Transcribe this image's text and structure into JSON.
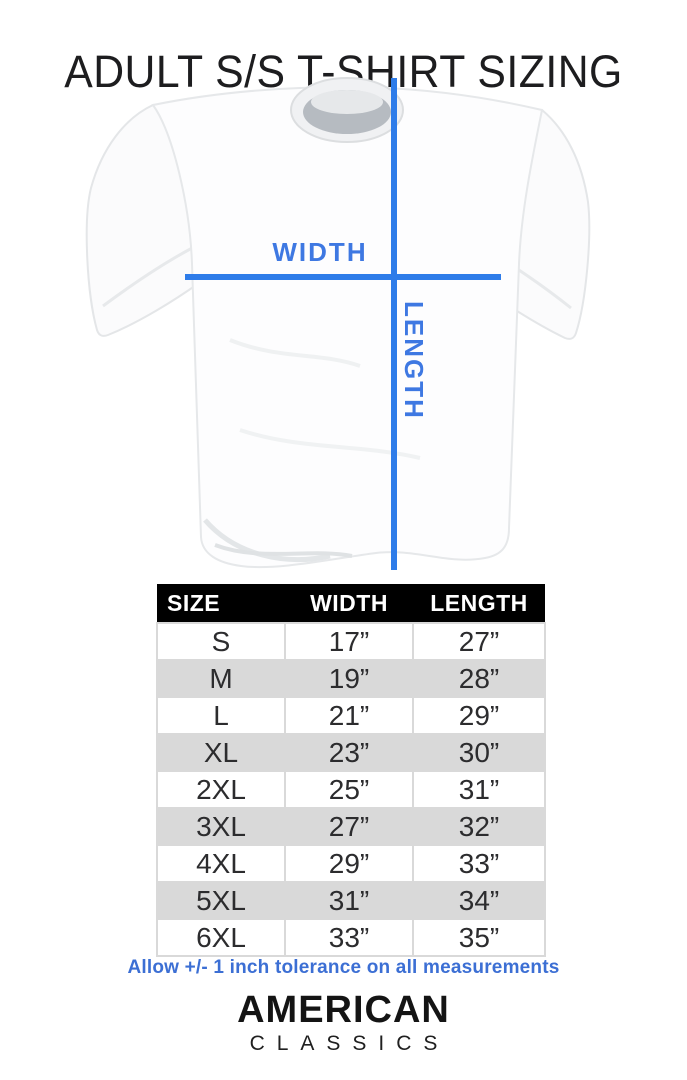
{
  "title": "ADULT S/S T-SHIRT SIZING",
  "diagram": {
    "width_label": "WIDTH",
    "length_label": "LENGTH"
  },
  "colors": {
    "measure_blue": "#2e7ce9",
    "label_blue": "#3e78e2",
    "note_blue": "#3c6fd4",
    "header_bg": "#000000",
    "header_text": "#ffffff",
    "row_alt": "#d9d9d9"
  },
  "table": {
    "headers": [
      "SIZE",
      "WIDTH",
      "LENGTH"
    ],
    "rows": [
      [
        "S",
        "17”",
        "27”"
      ],
      [
        "M",
        "19”",
        "28”"
      ],
      [
        "L",
        "21”",
        "29”"
      ],
      [
        "XL",
        "23”",
        "30”"
      ],
      [
        "2XL",
        "25”",
        "31”"
      ],
      [
        "3XL",
        "27”",
        "32”"
      ],
      [
        "4XL",
        "29”",
        "33”"
      ],
      [
        "5XL",
        "31”",
        "34”"
      ],
      [
        "6XL",
        "33”",
        "35”"
      ]
    ]
  },
  "note": "Allow +/- 1 inch tolerance on all measurements",
  "logo": {
    "primary": "AMERICAN",
    "secondary": "CLASSICS"
  },
  "chart_data": {
    "type": "table",
    "title": "ADULT S/S T-SHIRT SIZING",
    "columns": [
      "SIZE",
      "WIDTH",
      "LENGTH"
    ],
    "units": "inches",
    "sizes": [
      "S",
      "M",
      "L",
      "XL",
      "2XL",
      "3XL",
      "4XL",
      "5XL",
      "6XL"
    ],
    "series": [
      {
        "name": "WIDTH",
        "values": [
          17,
          19,
          21,
          23,
          25,
          27,
          29,
          31,
          33
        ]
      },
      {
        "name": "LENGTH",
        "values": [
          27,
          28,
          29,
          30,
          31,
          32,
          33,
          34,
          35
        ]
      }
    ],
    "note": "Allow +/- 1 inch tolerance on all measurements"
  }
}
